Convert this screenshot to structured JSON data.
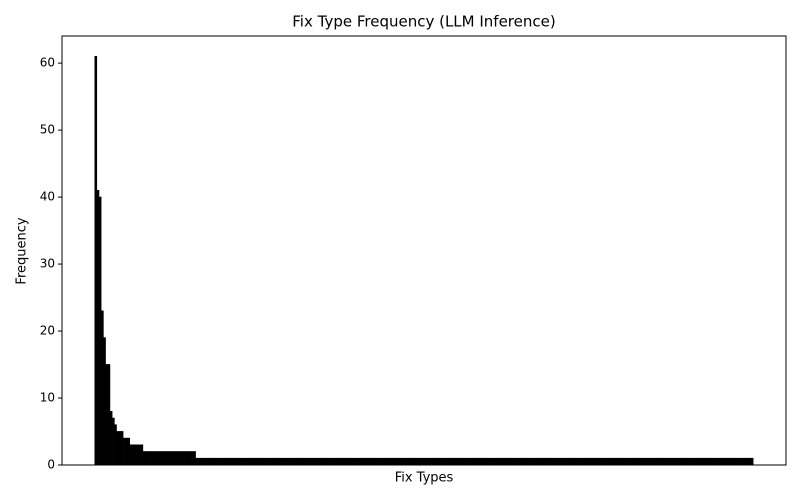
{
  "chart_data": {
    "type": "bar",
    "title": "Fix Type Frequency (LLM Inference)",
    "x_label": "Fix Types",
    "y_label": "Frequency",
    "categories": [
      null,
      null,
      null,
      null,
      null,
      null,
      null,
      null,
      null,
      null,
      null,
      null,
      null,
      null,
      null,
      null,
      null,
      null,
      null,
      null,
      null,
      null,
      null,
      null,
      null,
      null,
      null,
      null,
      null,
      null,
      null,
      null,
      null,
      null,
      null,
      null,
      null,
      null,
      null,
      null,
      null,
      null,
      null,
      null,
      null,
      null,
      null,
      null,
      null,
      null,
      null,
      null,
      null,
      null,
      null,
      null,
      null,
      null,
      null,
      null,
      null,
      null,
      null,
      null,
      null,
      null,
      null,
      null,
      null,
      null,
      null,
      null,
      null,
      null,
      null,
      null,
      null,
      null,
      null,
      null,
      null,
      null,
      null,
      null,
      null,
      null,
      null,
      null,
      null,
      null,
      null,
      null,
      null,
      null,
      null,
      null,
      null,
      null,
      null,
      null,
      null,
      null,
      null,
      null,
      null,
      null,
      null,
      null,
      null,
      null,
      null,
      null,
      null,
      null,
      null,
      null,
      null,
      null,
      null,
      null,
      null,
      null,
      null,
      null,
      null,
      null,
      null,
      null,
      null,
      null,
      null,
      null,
      null,
      null,
      null,
      null,
      null,
      null,
      null,
      null,
      null,
      null,
      null,
      null,
      null,
      null,
      null,
      null,
      null,
      null,
      null,
      null,
      null,
      null,
      null,
      null,
      null,
      null,
      null,
      null,
      null,
      null,
      null,
      null,
      null,
      null,
      null,
      null,
      null,
      null,
      null,
      null,
      null,
      null,
      null,
      null,
      null,
      null,
      null,
      null,
      null,
      null,
      null,
      null,
      null,
      null,
      null,
      null,
      null,
      null,
      null,
      null,
      null,
      null,
      null,
      null,
      null,
      null,
      null,
      null,
      null,
      null,
      null,
      null,
      null,
      null,
      null,
      null,
      null,
      null,
      null,
      null,
      null,
      null,
      null,
      null,
      null,
      null,
      null,
      null,
      null,
      null,
      null,
      null,
      null,
      null,
      null,
      null,
      null,
      null,
      null,
      null,
      null,
      null,
      null,
      null,
      null,
      null,
      null,
      null,
      null,
      null,
      null,
      null,
      null,
      null,
      null,
      null,
      null,
      null,
      null,
      null,
      null,
      null,
      null,
      null,
      null,
      null,
      null,
      null,
      null,
      null,
      null,
      null,
      null,
      null,
      null,
      null,
      null,
      null,
      null,
      null,
      null,
      null,
      null,
      null,
      null,
      null,
      null,
      null,
      null,
      null,
      null,
      null,
      null,
      null,
      null,
      null,
      null,
      null,
      null,
      null,
      null,
      null,
      null,
      null,
      null,
      null,
      null,
      null
    ],
    "values": [
      61,
      41,
      40,
      23,
      19,
      15,
      15,
      8,
      7,
      6,
      5,
      5,
      5,
      4,
      4,
      4,
      3,
      3,
      3,
      3,
      3,
      3,
      2,
      2,
      2,
      2,
      2,
      2,
      2,
      2,
      2,
      2,
      2,
      2,
      2,
      2,
      2,
      2,
      2,
      2,
      2,
      2,
      2,
      2,
      2,
      2,
      1,
      1,
      1,
      1,
      1,
      1,
      1,
      1,
      1,
      1,
      1,
      1,
      1,
      1,
      1,
      1,
      1,
      1,
      1,
      1,
      1,
      1,
      1,
      1,
      1,
      1,
      1,
      1,
      1,
      1,
      1,
      1,
      1,
      1,
      1,
      1,
      1,
      1,
      1,
      1,
      1,
      1,
      1,
      1,
      1,
      1,
      1,
      1,
      1,
      1,
      1,
      1,
      1,
      1,
      1,
      1,
      1,
      1,
      1,
      1,
      1,
      1,
      1,
      1,
      1,
      1,
      1,
      1,
      1,
      1,
      1,
      1,
      1,
      1,
      1,
      1,
      1,
      1,
      1,
      1,
      1,
      1,
      1,
      1,
      1,
      1,
      1,
      1,
      1,
      1,
      1,
      1,
      1,
      1,
      1,
      1,
      1,
      1,
      1,
      1,
      1,
      1,
      1,
      1,
      1,
      1,
      1,
      1,
      1,
      1,
      1,
      1,
      1,
      1,
      1,
      1,
      1,
      1,
      1,
      1,
      1,
      1,
      1,
      1,
      1,
      1,
      1,
      1,
      1,
      1,
      1,
      1,
      1,
      1,
      1,
      1,
      1,
      1,
      1,
      1,
      1,
      1,
      1,
      1,
      1,
      1,
      1,
      1,
      1,
      1,
      1,
      1,
      1,
      1,
      1,
      1,
      1,
      1,
      1,
      1,
      1,
      1,
      1,
      1,
      1,
      1,
      1,
      1,
      1,
      1,
      1,
      1,
      1,
      1,
      1,
      1,
      1,
      1,
      1,
      1,
      1,
      1,
      1,
      1,
      1,
      1,
      1,
      1,
      1,
      1,
      1,
      1,
      1,
      1,
      1,
      1,
      1,
      1,
      1,
      1,
      1,
      1,
      1,
      1,
      1,
      1,
      1,
      1,
      1,
      1,
      1,
      1,
      1,
      1,
      1,
      1,
      1,
      1,
      1,
      1,
      1,
      1,
      1,
      1,
      1,
      1,
      1,
      1,
      1,
      1,
      1,
      1,
      1,
      1,
      1,
      1,
      1,
      1,
      1,
      1,
      1,
      1,
      1,
      1,
      1,
      1,
      1,
      1,
      1,
      1,
      1,
      1,
      1,
      1
    ],
    "color": "#000000",
    "ylim": [
      0,
      64.05
    ],
    "yticks": [
      0,
      10,
      20,
      30,
      40,
      50,
      60
    ],
    "grid": false
  }
}
